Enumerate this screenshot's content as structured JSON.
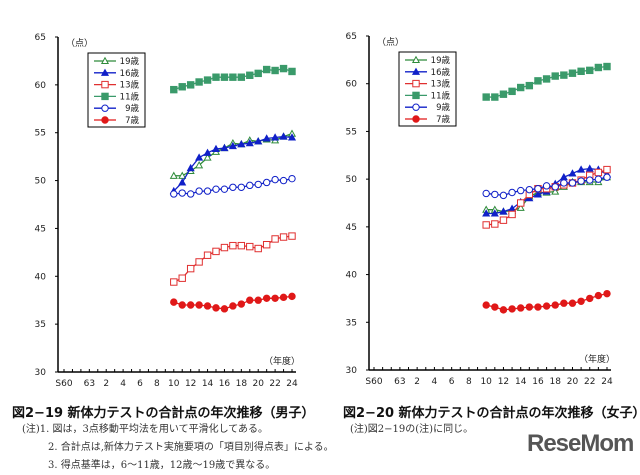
{
  "chart_data": [
    {
      "type": "line",
      "title": "図2−19 新体力テストの合計点の年次推移（男子）",
      "ylabel": "（点）",
      "xlabel": "（年度）",
      "ylim": [
        30,
        65
      ],
      "yticks": [
        "30",
        "35",
        "40",
        "45",
        "50",
        "55",
        "60",
        "65"
      ],
      "categories": [
        "S60",
        "61",
        "62",
        "63",
        "H1",
        "2",
        "3",
        "4",
        "5",
        "6",
        "7",
        "8",
        "9",
        "10",
        "11",
        "12",
        "13",
        "14",
        "15",
        "16",
        "17",
        "18",
        "19",
        "20",
        "21",
        "22",
        "23",
        "24"
      ],
      "xtick_labels": [
        "S60",
        "",
        "",
        "63",
        "",
        "2",
        "",
        "4",
        "",
        "6",
        "",
        "8",
        "",
        "10",
        "",
        "12",
        "",
        "14",
        "",
        "16",
        "",
        "18",
        "",
        "20",
        "",
        "22",
        "",
        "24"
      ],
      "x": [
        "10",
        "11",
        "12",
        "13",
        "14",
        "15",
        "16",
        "17",
        "18",
        "19",
        "20",
        "21",
        "22",
        "23",
        "24"
      ],
      "grid": false,
      "legend": "top-left",
      "series": [
        {
          "name": "19歳",
          "color": "#2e8b3a",
          "marker": "triangle-open",
          "values": [
            50.5,
            50.5,
            51.0,
            51.6,
            52.4,
            53.0,
            53.4,
            53.9,
            53.8,
            54.2,
            54.1,
            54.3,
            54.2,
            54.6,
            54.9
          ]
        },
        {
          "name": "16歳",
          "color": "#1020c8",
          "marker": "triangle-filled",
          "values": [
            48.9,
            49.8,
            51.3,
            52.4,
            52.9,
            53.3,
            53.4,
            53.6,
            53.8,
            53.9,
            54.1,
            54.4,
            54.5,
            54.6,
            54.5
          ]
        },
        {
          "name": "13歳",
          "color": "#e03030",
          "marker": "square-open",
          "values": [
            39.4,
            39.8,
            40.8,
            41.5,
            42.2,
            42.6,
            43.0,
            43.2,
            43.2,
            43.1,
            42.9,
            43.3,
            43.9,
            44.1,
            44.2
          ]
        },
        {
          "name": "11歳",
          "color": "#3a9a6a",
          "marker": "square-filled",
          "values": [
            59.5,
            59.8,
            60.0,
            60.3,
            60.5,
            60.8,
            60.8,
            60.8,
            60.8,
            61.0,
            61.2,
            61.6,
            61.5,
            61.7,
            61.4
          ]
        },
        {
          "name": "9歳",
          "color": "#1020c8",
          "marker": "circle-open",
          "values": [
            48.6,
            48.7,
            48.6,
            48.9,
            48.9,
            49.1,
            49.1,
            49.3,
            49.3,
            49.5,
            49.6,
            49.8,
            50.1,
            50.0,
            50.2
          ]
        },
        {
          "name": "7歳",
          "color": "#e01818",
          "marker": "circle-filled",
          "values": [
            37.3,
            37.0,
            37.0,
            37.0,
            36.9,
            36.7,
            36.6,
            36.9,
            37.1,
            37.5,
            37.5,
            37.7,
            37.7,
            37.8,
            37.9
          ]
        }
      ]
    },
    {
      "type": "line",
      "title": "図2−20 新体力テストの合計点の年次推移（女子）",
      "ylabel": "（点）",
      "xlabel": "（年度）",
      "ylim": [
        30,
        65
      ],
      "yticks": [
        "30",
        "35",
        "40",
        "45",
        "50",
        "55",
        "60",
        "65"
      ],
      "categories": [
        "S60",
        "61",
        "62",
        "63",
        "H1",
        "2",
        "3",
        "4",
        "5",
        "6",
        "7",
        "8",
        "9",
        "10",
        "11",
        "12",
        "13",
        "14",
        "15",
        "16",
        "17",
        "18",
        "19",
        "20",
        "21",
        "22",
        "23",
        "24"
      ],
      "xtick_labels": [
        "S60",
        "",
        "",
        "63",
        "",
        "2",
        "",
        "4",
        "",
        "6",
        "",
        "8",
        "",
        "10",
        "",
        "12",
        "",
        "14",
        "",
        "16",
        "",
        "18",
        "",
        "20",
        "",
        "22",
        "",
        "24"
      ],
      "x": [
        "10",
        "11",
        "12",
        "13",
        "14",
        "15",
        "16",
        "17",
        "18",
        "19",
        "20",
        "21",
        "22",
        "23",
        "24"
      ],
      "grid": false,
      "legend": "top-left",
      "series": [
        {
          "name": "19歳",
          "color": "#2e8b3a",
          "marker": "triangle-open",
          "values": [
            46.8,
            46.8,
            46.6,
            46.7,
            47.0,
            48.2,
            48.6,
            48.6,
            48.7,
            49.2,
            49.7,
            49.7,
            49.7,
            49.7,
            50.2
          ]
        },
        {
          "name": "16歳",
          "color": "#1020c8",
          "marker": "triangle-filled",
          "values": [
            46.4,
            46.4,
            46.6,
            46.9,
            47.6,
            48.0,
            48.4,
            48.7,
            49.5,
            50.2,
            50.6,
            51.0,
            51.1,
            51.0,
            50.5
          ]
        },
        {
          "name": "13歳",
          "color": "#e03030",
          "marker": "square-open",
          "values": [
            45.2,
            45.3,
            45.7,
            46.3,
            47.5,
            48.4,
            49.0,
            49.0,
            49.2,
            49.4,
            49.6,
            49.9,
            50.4,
            50.7,
            51.0
          ]
        },
        {
          "name": "11歳",
          "color": "#3a9a6a",
          "marker": "square-filled",
          "values": [
            58.6,
            58.6,
            58.9,
            59.2,
            59.6,
            59.8,
            60.3,
            60.5,
            60.8,
            60.9,
            61.1,
            61.3,
            61.4,
            61.7,
            61.8
          ]
        },
        {
          "name": "9歳",
          "color": "#1020c8",
          "marker": "circle-open",
          "values": [
            48.5,
            48.4,
            48.3,
            48.6,
            48.8,
            48.9,
            49.0,
            49.3,
            49.2,
            49.6,
            49.6,
            49.8,
            49.9,
            50.0,
            50.2
          ]
        },
        {
          "name": "7歳",
          "color": "#e01818",
          "marker": "circle-filled",
          "values": [
            36.8,
            36.6,
            36.3,
            36.4,
            36.5,
            36.6,
            36.6,
            36.7,
            36.8,
            37.0,
            37.0,
            37.2,
            37.5,
            37.8,
            38.0
          ]
        }
      ]
    }
  ],
  "notes_boys": [
    "(注)1. 図は，3点移動平均法を用いて平滑化してある。",
    "2. 合計点は,新体力テスト実施要項の「項目別得点表」による。",
    "3. 得点基準は，6〜11歳，12歳〜19歳で異なる。"
  ],
  "notes_girls": [
    "(注)図2−19の(注)に同じ。"
  ],
  "logo": "ReseMom"
}
